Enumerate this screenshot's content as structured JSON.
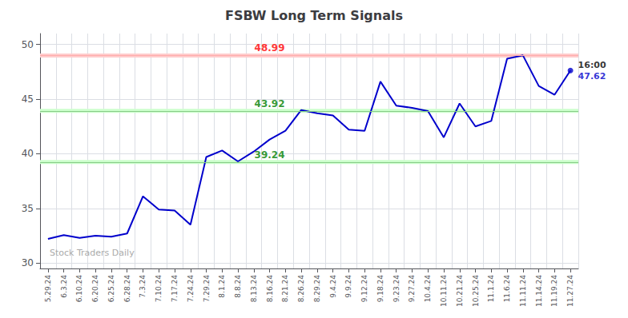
{
  "chart_data": {
    "type": "line",
    "title": "FSBW Long Term Signals",
    "categories": [
      "5.29.24",
      "6.3.24",
      "6.10.24",
      "6.20.24",
      "6.25.24",
      "6.28.24",
      "7.3.24",
      "7.10.24",
      "7.17.24",
      "7.24.24",
      "7.29.24",
      "8.1.24",
      "8.8.24",
      "8.13.24",
      "8.16.24",
      "8.21.24",
      "8.26.24",
      "8.29.24",
      "9.4.24",
      "9.9.24",
      "9.12.24",
      "9.18.24",
      "9.23.24",
      "9.27.24",
      "10.4.24",
      "10.11.24",
      "10.21.24",
      "10.25.24",
      "11.1.24",
      "11.6.24",
      "11.11.24",
      "11.14.24",
      "11.19.24",
      "11.27.24"
    ],
    "values": [
      32.2,
      32.55,
      32.3,
      32.5,
      32.4,
      32.7,
      36.1,
      34.9,
      34.8,
      33.5,
      39.7,
      40.3,
      39.3,
      40.2,
      41.3,
      42.1,
      44.0,
      43.7,
      43.5,
      42.2,
      42.1,
      46.6,
      44.4,
      44.2,
      43.9,
      41.5,
      44.6,
      42.5,
      43.0,
      48.7,
      49.0,
      46.2,
      45.4,
      47.62
    ],
    "color": "#0000cc",
    "ylim": [
      29.5,
      51
    ],
    "yticks": [
      30,
      35,
      40,
      45,
      50
    ],
    "grid": true,
    "reference_lines": [
      {
        "y": 48.99,
        "color": "#ffaaaa",
        "band_color": "#ffcccc"
      },
      {
        "y": 43.92,
        "color": "#88cc88",
        "band_color": "#ccffcc"
      },
      {
        "y": 39.24,
        "color": "#88cc88",
        "band_color": "#ccffcc"
      }
    ],
    "annotations": [
      {
        "text": "48.99",
        "x": "8.16.24",
        "y": 48.99,
        "color": "red"
      },
      {
        "text": "43.92",
        "x": "8.16.24",
        "y": 43.92,
        "color": "green"
      },
      {
        "text": "39.24",
        "x": "8.16.24",
        "y": 39.24,
        "color": "green"
      }
    ],
    "last_point_labels": [
      "16:00",
      "47.62"
    ],
    "watermark": "Stock Traders Daily"
  }
}
